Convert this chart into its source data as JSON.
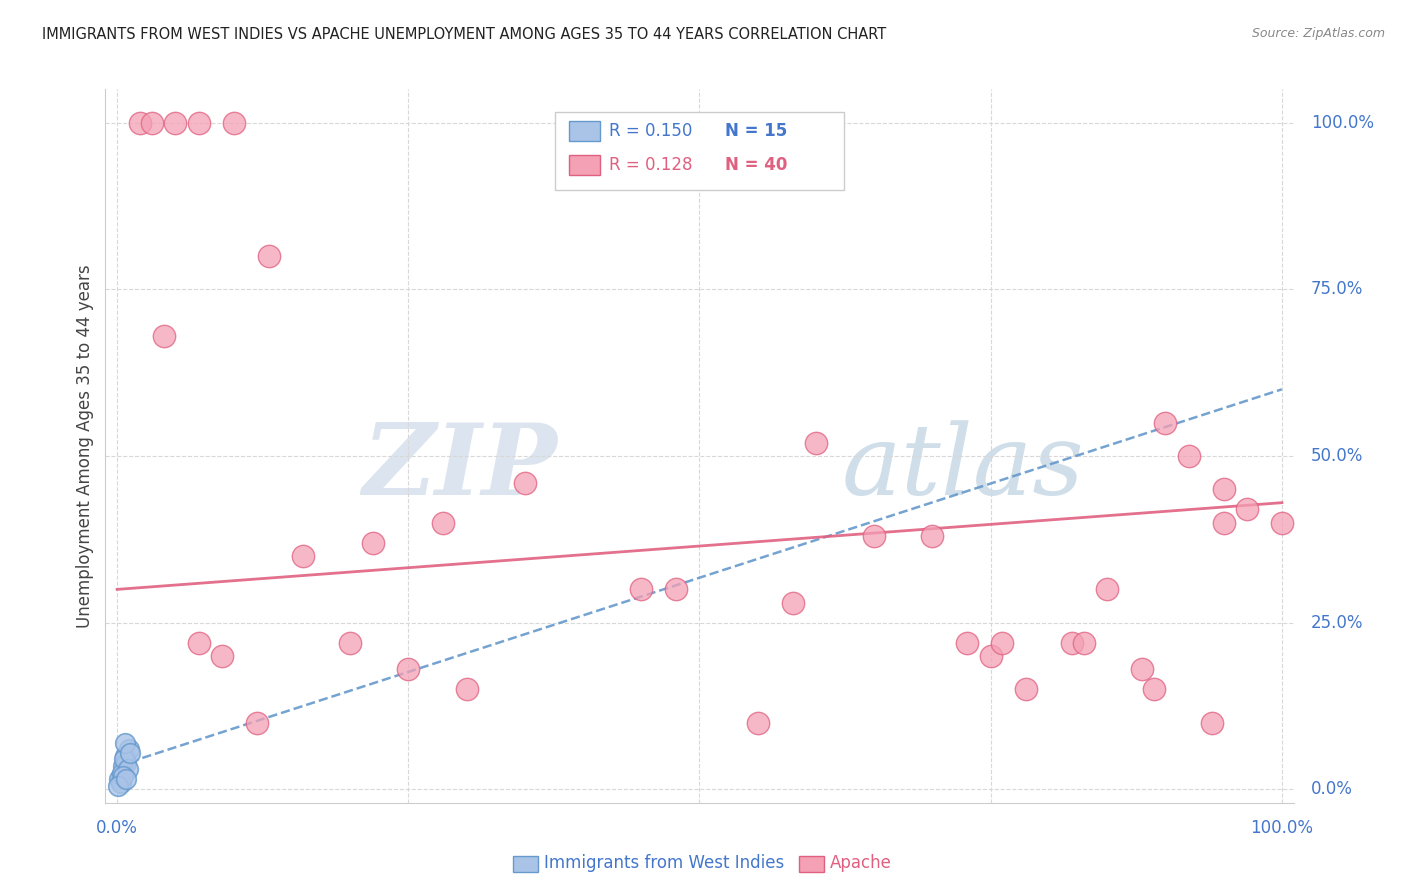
{
  "title": "IMMIGRANTS FROM WEST INDIES VS APACHE UNEMPLOYMENT AMONG AGES 35 TO 44 YEARS CORRELATION CHART",
  "source": "Source: ZipAtlas.com",
  "ylabel": "Unemployment Among Ages 35 to 44 years",
  "legend_label1": "Immigrants from West Indies",
  "legend_label2": "Apache",
  "legend_r1": "R = 0.150",
  "legend_n1": "N = 15",
  "legend_r2": "R = 0.128",
  "legend_n2": "N = 40",
  "watermark_zip": "ZIP",
  "watermark_atlas": "atlas",
  "background_color": "#ffffff",
  "grid_color": "#d8d8d8",
  "scatter_blue_color": "#aac4e8",
  "scatter_pink_color": "#f4a0b5",
  "line_blue_color": "#6699cc",
  "line_pink_color": "#e06080",
  "axis_color": "#4477cc",
  "title_color": "#222222",
  "blue_points_x": [
    0.3,
    0.5,
    0.7,
    0.8,
    1.0,
    0.2,
    0.4,
    0.6,
    0.9,
    0.3,
    0.5,
    0.1,
    0.7,
    1.1,
    0.8
  ],
  "blue_points_y": [
    2.0,
    3.5,
    5.0,
    4.0,
    6.0,
    1.5,
    2.5,
    4.5,
    3.0,
    1.0,
    2.0,
    0.5,
    7.0,
    5.5,
    1.5
  ],
  "pink_points_x": [
    2.0,
    3.0,
    5.0,
    7.0,
    10.0,
    13.0,
    16.0,
    20.0,
    25.0,
    30.0,
    35.0,
    45.0,
    55.0,
    65.0,
    70.0,
    75.0,
    78.0,
    82.0,
    85.0,
    90.0,
    92.0,
    95.0,
    97.0,
    100.0,
    4.0,
    7.0,
    9.0,
    12.0,
    22.0,
    28.0,
    48.0,
    58.0,
    73.0,
    83.0,
    89.0,
    94.0,
    60.0,
    76.0,
    88.0,
    95.0
  ],
  "pink_points_y": [
    100.0,
    100.0,
    100.0,
    100.0,
    100.0,
    80.0,
    35.0,
    22.0,
    18.0,
    15.0,
    46.0,
    30.0,
    10.0,
    38.0,
    38.0,
    20.0,
    15.0,
    22.0,
    30.0,
    55.0,
    50.0,
    45.0,
    42.0,
    40.0,
    68.0,
    22.0,
    20.0,
    10.0,
    37.0,
    40.0,
    30.0,
    28.0,
    22.0,
    22.0,
    15.0,
    10.0,
    52.0,
    22.0,
    18.0,
    40.0
  ],
  "blue_line": [
    0.0,
    3.5,
    100.0,
    60.0
  ],
  "pink_line": [
    0.0,
    30.0,
    100.0,
    43.0
  ],
  "xlim": [
    -1,
    101
  ],
  "ylim": [
    -2,
    105
  ],
  "ytick_vals": [
    0,
    25,
    50,
    75,
    100
  ],
  "xtick_labels": [
    "0.0%",
    "100.0%"
  ],
  "ytick_labels": [
    "100.0%",
    "75.0%",
    "50.0%",
    "25.0%",
    "0.0%"
  ]
}
